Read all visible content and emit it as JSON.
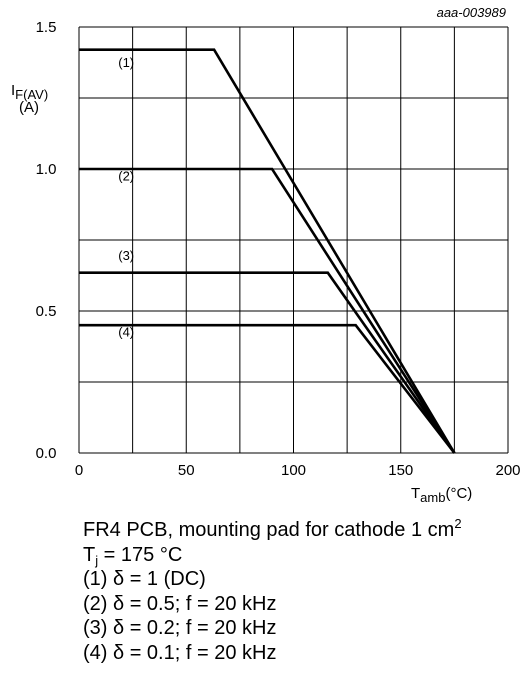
{
  "chart_data": {
    "type": "line",
    "figure_id": "aaa-003989",
    "ylabel": {
      "main": "I",
      "sub": "F(AV)",
      "unit": "(A)"
    },
    "xlabel": {
      "main": "T",
      "sub": "amb",
      "unit": "(°C)"
    },
    "xlim": [
      0,
      200
    ],
    "ylim": [
      0,
      1.5
    ],
    "x_ticks": [
      0,
      50,
      100,
      150,
      200
    ],
    "x_tick_labels": [
      "0",
      "50",
      "100",
      "150",
      "200"
    ],
    "x_minor_step": 25,
    "y_ticks": [
      0,
      0.5,
      1.0,
      1.5
    ],
    "y_tick_labels": [
      "0.0",
      "0.5",
      "1.0",
      "1.5"
    ],
    "y_minor_step": 0.25,
    "grid": true,
    "series": [
      {
        "name": "(1)",
        "label_pos": [
          22,
          1.36
        ],
        "points": [
          [
            0,
            1.42
          ],
          [
            63,
            1.42
          ],
          [
            175,
            0
          ]
        ]
      },
      {
        "name": "(2)",
        "label_pos": [
          22,
          0.96
        ],
        "points": [
          [
            0,
            1.0
          ],
          [
            90,
            1.0
          ],
          [
            175,
            0
          ]
        ]
      },
      {
        "name": "(3)",
        "label_pos": [
          22,
          0.68
        ],
        "points": [
          [
            0,
            0.635
          ],
          [
            116,
            0.635
          ],
          [
            175,
            0
          ]
        ]
      },
      {
        "name": "(4)",
        "label_pos": [
          22,
          0.41
        ],
        "points": [
          [
            0,
            0.45
          ],
          [
            129,
            0.45
          ],
          [
            175,
            0
          ]
        ]
      }
    ]
  },
  "caption": {
    "line1_main": "FR4 PCB, mounting pad for cathode 1 cm",
    "line1_sup": "2",
    "line2_main": "T",
    "line2_sub": "j",
    "line2_rest": " = 175 °C",
    "line3": "(1) δ = 1 (DC)",
    "line4": "(2) δ = 0.5; f = 20 kHz",
    "line5": "(3) δ = 0.2; f = 20 kHz",
    "line6": "(4) δ = 0.1; f = 20 kHz"
  }
}
